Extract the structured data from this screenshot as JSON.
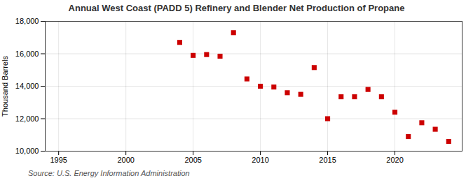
{
  "chart_data": {
    "type": "scatter",
    "title": "Annual West Coast (PADD 5) Refinery and Blender Net Production of Propane",
    "ylabel": "Thousand Barrels",
    "caption": "Source: U.S. Energy Information Administration",
    "x": [
      2004,
      2005,
      2006,
      2007,
      2008,
      2009,
      2010,
      2011,
      2012,
      2013,
      2014,
      2015,
      2016,
      2017,
      2018,
      2019,
      2020,
      2021,
      2022,
      2023,
      2024
    ],
    "values": [
      16700,
      15900,
      15950,
      15850,
      17300,
      14450,
      14000,
      13950,
      13600,
      13500,
      15150,
      12000,
      13350,
      13350,
      13800,
      13350,
      12400,
      10900,
      11750,
      11350,
      10600
    ],
    "color": "#cc0000",
    "marker": "square",
    "xlim": [
      1994,
      2025
    ],
    "xticks": [
      1995,
      2000,
      2005,
      2010,
      2015,
      2020
    ],
    "ylim": [
      10000,
      18000
    ],
    "yticks": [
      {
        "value": 10000,
        "label": "10,000"
      },
      {
        "value": 12000,
        "label": "12,000"
      },
      {
        "value": 14000,
        "label": "14,000"
      },
      {
        "value": 16000,
        "label": "16,000"
      },
      {
        "value": 18000,
        "label": "18,000"
      }
    ],
    "grid": true
  }
}
